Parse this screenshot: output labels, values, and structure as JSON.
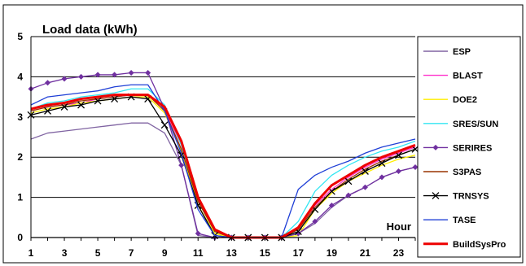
{
  "chart_data": {
    "type": "line",
    "title": "Load data (kWh)",
    "xlabel": "Hour",
    "ylabel": "",
    "x": [
      1,
      2,
      3,
      4,
      5,
      6,
      7,
      8,
      9,
      10,
      11,
      12,
      13,
      14,
      15,
      16,
      17,
      18,
      19,
      20,
      21,
      22,
      23,
      24
    ],
    "xticks": [
      1,
      3,
      5,
      7,
      9,
      11,
      13,
      15,
      17,
      19,
      21,
      23
    ],
    "yticks": [
      0,
      1,
      2,
      3,
      4,
      5
    ],
    "xlim": [
      1,
      24
    ],
    "ylim": [
      0,
      5
    ],
    "grid": "horizontal",
    "legend": "right",
    "series": [
      {
        "name": "ESP",
        "color": "#8064a2",
        "values": [
          2.45,
          2.6,
          2.65,
          2.7,
          2.75,
          2.8,
          2.85,
          2.85,
          2.6,
          1.8,
          0.05,
          0.0,
          0.0,
          0.0,
          0.0,
          0.0,
          0.1,
          0.35,
          0.75,
          1.05,
          1.25,
          1.5,
          1.65,
          1.75
        ]
      },
      {
        "name": "BLAST",
        "color": "#ff33cc",
        "values": [
          3.15,
          3.25,
          3.3,
          3.35,
          3.45,
          3.5,
          3.55,
          3.55,
          3.2,
          2.3,
          1.0,
          0.2,
          0.0,
          0.0,
          0.0,
          0.0,
          0.25,
          0.8,
          1.2,
          1.5,
          1.75,
          1.95,
          2.1,
          2.25
        ]
      },
      {
        "name": "DOE2",
        "color": "#ffee00",
        "values": [
          3.1,
          3.2,
          3.25,
          3.35,
          3.4,
          3.45,
          3.5,
          3.5,
          3.1,
          2.15,
          0.8,
          0.1,
          0.0,
          0.0,
          0.0,
          0.0,
          0.05,
          0.7,
          1.1,
          1.4,
          1.6,
          1.8,
          1.95,
          2.05
        ]
      },
      {
        "name": "SRES/SUN",
        "color": "#33e6f2",
        "values": [
          3.2,
          3.35,
          3.4,
          3.5,
          3.55,
          3.6,
          3.7,
          3.7,
          3.3,
          2.3,
          0.9,
          0.15,
          0.0,
          0.0,
          0.0,
          0.0,
          0.4,
          1.15,
          1.55,
          1.8,
          2.0,
          2.15,
          2.25,
          2.4
        ]
      },
      {
        "name": "SERIRES",
        "color": "#7030a0",
        "marker": "diamond",
        "values": [
          3.7,
          3.85,
          3.95,
          4.0,
          4.05,
          4.05,
          4.1,
          4.1,
          3.2,
          1.8,
          0.1,
          0.0,
          0.0,
          0.0,
          0.0,
          0.0,
          0.1,
          0.4,
          0.8,
          1.05,
          1.25,
          1.5,
          1.65,
          1.75
        ]
      },
      {
        "name": "S3PAS",
        "color": "#993300",
        "values": [
          3.15,
          3.25,
          3.3,
          3.4,
          3.45,
          3.5,
          3.55,
          3.55,
          3.15,
          2.2,
          0.9,
          0.15,
          0.0,
          0.0,
          0.0,
          0.0,
          0.2,
          0.75,
          1.15,
          1.45,
          1.7,
          1.9,
          2.05,
          2.2
        ]
      },
      {
        "name": "TRNSYS",
        "color": "#000000",
        "marker": "x",
        "values": [
          3.05,
          3.15,
          3.25,
          3.3,
          3.4,
          3.45,
          3.5,
          3.45,
          2.8,
          2.05,
          0.8,
          0.05,
          0.0,
          0.0,
          0.0,
          0.0,
          0.15,
          0.7,
          1.15,
          1.4,
          1.65,
          1.85,
          2.05,
          2.2
        ]
      },
      {
        "name": "TASE",
        "color": "#1f3fd6",
        "values": [
          3.3,
          3.5,
          3.55,
          3.6,
          3.65,
          3.75,
          3.8,
          3.8,
          3.15,
          2.1,
          0.7,
          0.05,
          0.0,
          0.0,
          0.0,
          0.0,
          1.2,
          1.55,
          1.75,
          1.9,
          2.1,
          2.25,
          2.35,
          2.45
        ]
      },
      {
        "name": "BuildSysPro",
        "color": "#ee0000",
        "width": 3,
        "values": [
          3.2,
          3.3,
          3.35,
          3.45,
          3.5,
          3.55,
          3.55,
          3.55,
          3.25,
          2.4,
          1.0,
          0.2,
          0.0,
          0.0,
          0.0,
          0.0,
          0.25,
          0.85,
          1.3,
          1.55,
          1.8,
          2.0,
          2.15,
          2.3
        ]
      }
    ]
  }
}
